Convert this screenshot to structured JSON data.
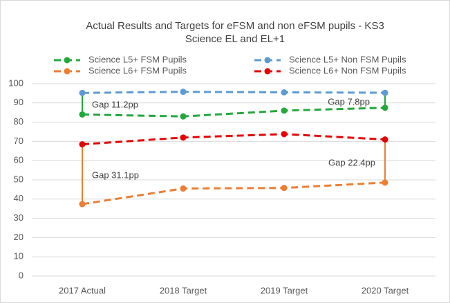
{
  "chart_data": {
    "type": "line",
    "title": [
      "Actual Results and Targets for eFSM and non eFSM pupils - KS3",
      "Science EL and EL+1"
    ],
    "categories": [
      "2017 Actual",
      "2018 Target",
      "2019 Target",
      "2020 Target"
    ],
    "series": [
      {
        "name": "Science L5+ FSM Pupils",
        "color": "#22a83c",
        "values": [
          84,
          83,
          86,
          87.5
        ]
      },
      {
        "name": "Science L5+ Non FSM Pupils",
        "color": "#5b9bd5",
        "values": [
          95.2,
          95.8,
          95.5,
          95.3
        ]
      },
      {
        "name": "Science L6+ FSM Pupils",
        "color": "#ed7d31",
        "values": [
          37.4,
          45.5,
          45.8,
          48.6
        ]
      },
      {
        "name": "Science L6+ Non FSM Pupils",
        "color": "#e60000",
        "values": [
          68.5,
          72,
          73.8,
          71
        ]
      }
    ],
    "annotations": [
      "Gap 11.2pp",
      "Gap 7.8pp",
      "Gap 31.1pp",
      "Gap 22.4pp"
    ],
    "ylim": [
      0,
      100
    ],
    "yticks": [
      0,
      10,
      20,
      30,
      40,
      50,
      60,
      70,
      80,
      90,
      100
    ],
    "grid": true
  }
}
